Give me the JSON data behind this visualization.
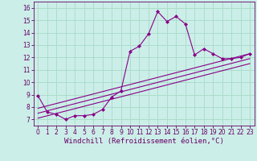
{
  "background_color": "#cceee8",
  "grid_color": "#aaddcc",
  "line_color": "#880088",
  "xlabel": "Windchill (Refroidissement éolien,°C)",
  "xlabel_fontsize": 6.5,
  "ylim": [
    6.5,
    16.5
  ],
  "xlim": [
    -0.5,
    23.5
  ],
  "yticks": [
    7,
    8,
    9,
    10,
    11,
    12,
    13,
    14,
    15,
    16
  ],
  "xticks": [
    0,
    1,
    2,
    3,
    4,
    5,
    6,
    7,
    8,
    9,
    10,
    11,
    12,
    13,
    14,
    15,
    16,
    17,
    18,
    19,
    20,
    21,
    22,
    23
  ],
  "series1_x": [
    0,
    1,
    2,
    3,
    4,
    5,
    6,
    7,
    8,
    9,
    10,
    11,
    12,
    13,
    14,
    15,
    16,
    17,
    18,
    19,
    20,
    21,
    22,
    23
  ],
  "series1_y": [
    8.9,
    7.6,
    7.4,
    7.0,
    7.3,
    7.3,
    7.4,
    7.8,
    8.8,
    9.3,
    12.5,
    12.9,
    13.9,
    15.7,
    14.9,
    15.3,
    14.7,
    12.2,
    12.7,
    12.3,
    11.9,
    11.9,
    12.0,
    12.3
  ],
  "series2_x": [
    0,
    23
  ],
  "series2_y": [
    7.9,
    12.3
  ],
  "series3_x": [
    0,
    23
  ],
  "series3_y": [
    7.5,
    11.9
  ],
  "series4_x": [
    0,
    23
  ],
  "series4_y": [
    7.1,
    11.5
  ],
  "tick_fontsize": 5.5,
  "tick_color": "#660066",
  "spine_color": "#660066"
}
